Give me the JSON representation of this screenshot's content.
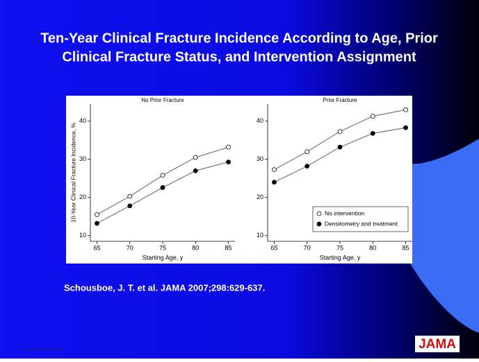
{
  "slide": {
    "title": [
      "Ten-Year Clinical Fracture Incidence According to Age, Prior",
      "Clinical Fracture Status, and Intervention Assignment"
    ],
    "citation": "Schousboe, J. T. et al. JAMA 2007;298:629-637.",
    "logo": "JAMA",
    "copyright": "Copyright restrictions may apply."
  },
  "chart_data": [
    {
      "type": "line",
      "title": "No Prior Fracture",
      "x_label": "Starting Age, y",
      "y_label": "10-Year Clinical Fracture Incidence, %",
      "x": [
        65,
        70,
        75,
        80,
        85
      ],
      "series": [
        {
          "name": "No intervention",
          "color": "#ffffff",
          "values": [
            15.5,
            20.3,
            25.8,
            30.5,
            33.2
          ]
        },
        {
          "name": "Densitometry and treatment",
          "color": "#000000",
          "values": [
            13.2,
            17.8,
            22.6,
            27.0,
            29.3
          ]
        }
      ],
      "xlim": [
        64,
        86
      ],
      "xticks": [
        65,
        70,
        75,
        80,
        85
      ],
      "ylim": [
        8.5,
        44.5
      ],
      "yticks": [
        10,
        20,
        30,
        40
      ]
    },
    {
      "type": "line",
      "title": "Prior Fracture",
      "x_label": "Starting Age, y",
      "x": [
        65,
        70,
        75,
        80,
        85
      ],
      "series": [
        {
          "name": "No intervention",
          "color": "#ffffff",
          "values": [
            27.3,
            32.0,
            37.3,
            41.3,
            43.0
          ]
        },
        {
          "name": "Densitometry and treatment",
          "color": "#000000",
          "values": [
            24.0,
            28.2,
            33.2,
            36.8,
            38.3
          ]
        }
      ],
      "xlim": [
        64,
        86
      ],
      "xticks": [
        65,
        70,
        75,
        80,
        85
      ],
      "ylim": [
        8.5,
        44.5
      ],
      "yticks": [
        10,
        20,
        30,
        40
      ],
      "legend": "lower right"
    }
  ]
}
